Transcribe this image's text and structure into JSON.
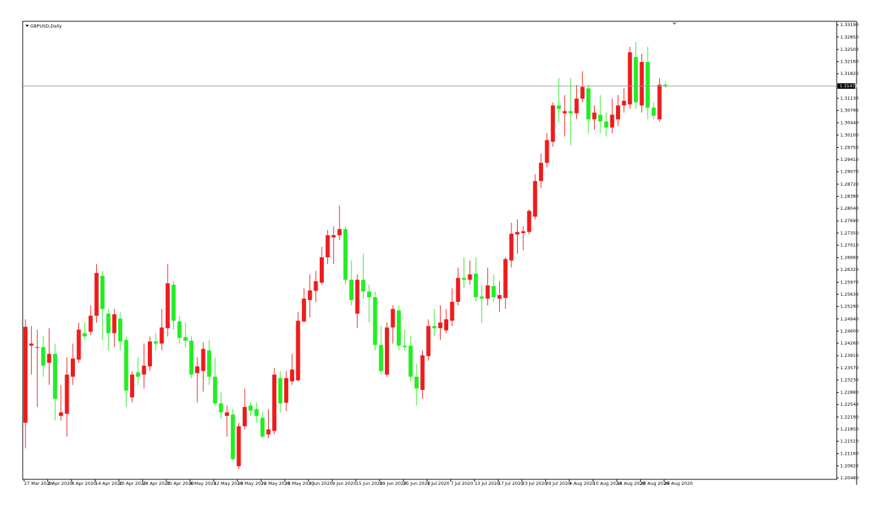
{
  "chart_data": {
    "type": "candlestick",
    "title": "GBPUSD,Daily",
    "up_color": "#ee1c1c",
    "down_color": "#22ee22",
    "last_price": 1.31474,
    "categories": [
      "27 Mar 2020",
      null,
      null,
      null,
      "2 Apr 2020",
      null,
      null,
      null,
      "8 Apr 2020",
      null,
      null,
      null,
      "14 Apr 2020",
      null,
      null,
      null,
      "20 Apr 2020",
      null,
      null,
      null,
      "24 Apr 2020",
      null,
      null,
      null,
      "30 Apr 2020",
      null,
      null,
      null,
      "6 May 2020",
      null,
      null,
      null,
      "12 May 2020",
      null,
      null,
      null,
      "18 May 2020",
      null,
      null,
      null,
      "22 May 2020",
      null,
      null,
      null,
      "28 May 2020",
      null,
      null,
      null,
      "3 Jun 2020",
      null,
      null,
      null,
      "9 Jun 2020",
      null,
      null,
      null,
      "15 Jun 2020",
      null,
      null,
      null,
      "19 Jun 2020",
      null,
      null,
      null,
      "25 Jun 2020",
      null,
      null,
      null,
      "1 Jul 2020",
      null,
      null,
      null,
      "7 Jul 2020",
      null,
      null,
      null,
      "13 Jul 2020",
      null,
      null,
      null,
      "17 Jul 2020",
      null,
      null,
      null,
      "23 Jul 2020",
      null,
      null,
      null,
      "29 Jul 2020",
      null,
      null,
      null,
      "4 Aug 2020",
      null,
      null,
      null,
      "10 Aug 2020",
      null,
      null,
      null,
      "14 Aug 2020",
      null,
      null,
      null,
      "20 Aug 2020",
      null,
      null,
      null,
      "26 Aug 2020"
    ],
    "open": [
      1.2203,
      1.2419,
      1.2413,
      1.2415,
      1.2371,
      1.2396,
      1.2222,
      1.2228,
      1.2332,
      1.238,
      1.2454,
      1.2458,
      1.2503,
      1.2615,
      1.2509,
      1.2454,
      1.2495,
      1.2435,
      1.2274,
      1.2344,
      1.2338,
      1.2361,
      1.2431,
      1.2425,
      1.2468,
      1.259,
      1.2487,
      1.2443,
      1.2433,
      1.2342,
      1.2348,
      1.2406,
      1.2332,
      1.2257,
      1.2222,
      1.2226,
      1.2081,
      1.2193,
      1.2251,
      1.2241,
      1.2217,
      1.217,
      1.218,
      1.2328,
      1.2259,
      1.2319,
      1.2322,
      1.2487,
      1.2547,
      1.2573,
      1.2596,
      1.2667,
      1.2723,
      1.2729,
      1.2746,
      1.2604,
      1.2509,
      1.2604,
      1.2571,
      1.2555,
      1.2421,
      1.2338,
      1.247,
      1.2518,
      1.2419,
      1.2419,
      1.2332,
      1.2295,
      1.239,
      1.2474,
      1.2468,
      1.2462,
      1.2489,
      1.2542,
      1.2609,
      1.2604,
      1.2621,
      1.2557,
      1.2551,
      1.2586,
      1.2551,
      1.2553,
      1.2658,
      1.2731,
      1.2735,
      1.2738,
      1.2781,
      1.2881,
      1.2932,
      1.2991,
      1.3093,
      1.3071,
      1.3077,
      1.3071,
      1.3112,
      1.3141,
      1.3054,
      1.3067,
      1.3048,
      1.3031,
      1.3054,
      1.3093,
      1.3096,
      1.3229,
      1.3093,
      1.3215,
      1.3087,
      1.3054,
      1.3151
    ],
    "high": [
      1.2493,
      1.2474,
      1.2464,
      1.2445,
      1.2468,
      1.2425,
      1.2309,
      1.2386,
      1.2425,
      1.2484,
      1.2484,
      1.2532,
      1.2648,
      1.2629,
      1.2522,
      1.2522,
      1.2513,
      1.2445,
      1.2348,
      1.2386,
      1.2425,
      1.2445,
      1.2454,
      1.2522,
      1.2648,
      1.26,
      1.2503,
      1.2484,
      1.2445,
      1.2386,
      1.2429,
      1.2435,
      1.2386,
      1.229,
      1.2251,
      1.2241,
      1.2203,
      1.2299,
      1.226,
      1.226,
      1.2232,
      1.2241,
      1.2357,
      1.2348,
      1.2348,
      1.2396,
      1.2513,
      1.258,
      1.2619,
      1.2629,
      1.2696,
      1.2744,
      1.2754,
      1.2812,
      1.2754,
      1.2658,
      1.2619,
      1.2677,
      1.259,
      1.2571,
      1.2474,
      1.2484,
      1.2532,
      1.2532,
      1.2464,
      1.2445,
      1.2367,
      1.2406,
      1.2493,
      1.2522,
      1.2532,
      1.2522,
      1.258,
      1.2638,
      1.2667,
      1.2658,
      1.2667,
      1.259,
      1.2638,
      1.2619,
      1.26,
      1.2667,
      1.2764,
      1.2773,
      1.2754,
      1.2802,
      1.29,
      1.2958,
      1.3015,
      1.3102,
      1.317,
      1.3122,
      1.317,
      1.3151,
      1.3189,
      1.3151,
      1.3093,
      1.3122,
      1.3073,
      1.3112,
      1.3122,
      1.3141,
      1.3258,
      1.3271,
      1.3238,
      1.3258,
      1.3102,
      1.317,
      1.316
    ],
    "low": [
      1.2131,
      1.2338,
      1.2247,
      1.2332,
      1.2309,
      1.2209,
      1.2209,
      1.2164,
      1.2309,
      1.2371,
      1.2435,
      1.2449,
      1.2484,
      1.2435,
      1.2406,
      1.2415,
      1.2406,
      1.2247,
      1.226,
      1.2309,
      1.2299,
      1.2348,
      1.2406,
      1.2406,
      1.2445,
      1.2464,
      1.2425,
      1.2415,
      1.2328,
      1.226,
      1.229,
      1.2309,
      1.2251,
      1.2213,
      1.2164,
      1.2097,
      1.2073,
      1.2184,
      1.2222,
      1.2203,
      1.216,
      1.216,
      1.217,
      1.2232,
      1.2236,
      1.2309,
      1.2319,
      1.2484,
      1.2499,
      1.2542,
      1.259,
      1.2648,
      1.2648,
      1.2715,
      1.259,
      1.2532,
      1.2468,
      1.2551,
      1.2484,
      1.2406,
      1.2338,
      1.2332,
      1.2425,
      1.2406,
      1.2406,
      1.2319,
      1.2251,
      1.227,
      1.2377,
      1.2445,
      1.2435,
      1.2454,
      1.2474,
      1.2532,
      1.258,
      1.259,
      1.2542,
      1.2484,
      1.2532,
      1.2542,
      1.2513,
      1.2522,
      1.2638,
      1.2677,
      1.2687,
      1.2731,
      1.2773,
      1.2861,
      1.2919,
      1.2977,
      1.3044,
      1.3006,
      1.2981,
      1.3054,
      1.3102,
      1.3015,
      1.3025,
      1.3015,
      1.3006,
      1.3015,
      1.3035,
      1.3073,
      1.3083,
      1.3083,
      1.3073,
      1.3054,
      1.3054,
      1.3048,
      1.3141
    ],
    "close": [
      1.2472,
      1.2425,
      1.2415,
      1.2363,
      1.2396,
      1.227,
      1.2232,
      1.2338,
      1.2383,
      1.2464,
      1.2445,
      1.2503,
      1.2623,
      1.2522,
      1.2454,
      1.2507,
      1.2431,
      1.2293,
      1.2338,
      1.2332,
      1.2363,
      1.2431,
      1.2425,
      1.247,
      1.2594,
      1.2489,
      1.2441,
      1.2433,
      1.2338,
      1.2361,
      1.241,
      1.2332,
      1.2257,
      1.2232,
      1.2232,
      1.2101,
      1.2193,
      1.2247,
      1.2237,
      1.2222,
      1.2164,
      1.2184,
      1.2338,
      1.2257,
      1.2328,
      1.2352,
      1.2489,
      1.2551,
      1.2574,
      1.26,
      1.2667,
      1.2729,
      1.2729,
      1.2746,
      1.2604,
      1.2547,
      1.2604,
      1.2571,
      1.2555,
      1.2421,
      1.2348,
      1.247,
      1.2522,
      1.2419,
      1.2415,
      1.2332,
      1.2299,
      1.2392,
      1.2474,
      1.2468,
      1.2484,
      1.2493,
      1.2542,
      1.2609,
      1.2604,
      1.2619,
      1.2555,
      1.2551,
      1.2588,
      1.2555,
      1.2561,
      1.2662,
      1.2733,
      1.2738,
      1.274,
      1.2797,
      1.2881,
      1.2932,
      1.2996,
      1.3093,
      1.3083,
      1.3077,
      1.3071,
      1.3112,
      1.3145,
      1.3054,
      1.3073,
      1.3048,
      1.3031,
      1.3067,
      1.3093,
      1.3106,
      1.3242,
      1.3102,
      1.3215,
      1.3087,
      1.3064,
      1.3151,
      1.31474
    ],
    "ylim": [
      1.2044,
      1.3329
    ],
    "yticks": [
      {
        "value": 1.3319,
        "label": "1.33190"
      },
      {
        "value": 1.3285,
        "label": "1.32850"
      },
      {
        "value": 1.325,
        "label": "1.32500"
      },
      {
        "value": 1.3216,
        "label": "1.32160"
      },
      {
        "value": 1.3182,
        "label": "1.31820"
      },
      {
        "value": 1.3113,
        "label": "1.31130"
      },
      {
        "value": 1.3079,
        "label": "1.30790"
      },
      {
        "value": 1.3044,
        "label": "1.30440"
      },
      {
        "value": 1.301,
        "label": "1.30100"
      },
      {
        "value": 1.2975,
        "label": "1.29750"
      },
      {
        "value": 1.2941,
        "label": "1.29410"
      },
      {
        "value": 1.2907,
        "label": "1.29070"
      },
      {
        "value": 1.2872,
        "label": "1.28720"
      },
      {
        "value": 1.2838,
        "label": "1.28380"
      },
      {
        "value": 1.2804,
        "label": "1.28040"
      },
      {
        "value": 1.2769,
        "label": "1.27690"
      },
      {
        "value": 1.2735,
        "label": "1.27350"
      },
      {
        "value": 1.2701,
        "label": "1.27010"
      },
      {
        "value": 1.2666,
        "label": "1.26660"
      },
      {
        "value": 1.2632,
        "label": "1.26320"
      },
      {
        "value": 1.2597,
        "label": "1.25970"
      },
      {
        "value": 1.2563,
        "label": "1.25630"
      },
      {
        "value": 1.2529,
        "label": "1.25290"
      },
      {
        "value": 1.2494,
        "label": "1.24940"
      },
      {
        "value": 1.246,
        "label": "1.24600"
      },
      {
        "value": 1.2426,
        "label": "1.24260"
      },
      {
        "value": 1.2391,
        "label": "1.23910"
      },
      {
        "value": 1.2357,
        "label": "1.23570"
      },
      {
        "value": 1.2323,
        "label": "1.23230"
      },
      {
        "value": 1.2288,
        "label": "1.22880"
      },
      {
        "value": 1.2254,
        "label": "1.22540"
      },
      {
        "value": 1.2219,
        "label": "1.22190"
      },
      {
        "value": 1.2185,
        "label": "1.21850"
      },
      {
        "value": 1.2151,
        "label": "1.21510"
      },
      {
        "value": 1.2116,
        "label": "1.21160"
      },
      {
        "value": 1.2082,
        "label": "1.20820"
      },
      {
        "value": 1.2048,
        "label": "1.20480"
      }
    ]
  }
}
